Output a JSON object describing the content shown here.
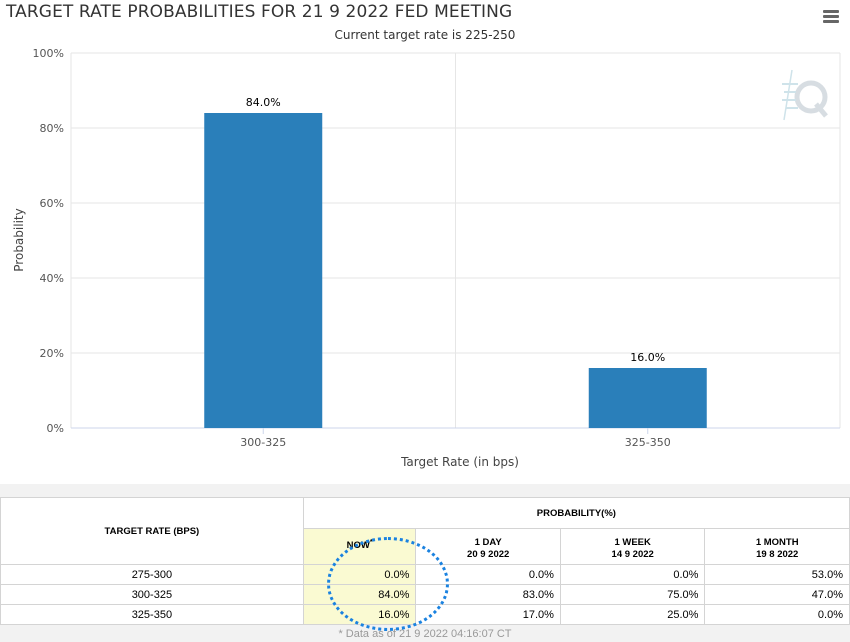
{
  "title": "TARGET RATE PROBABILITIES FOR 21 9 2022 FED MEETING",
  "subtitle": "Current target rate is 225-250",
  "menu_icon": "hamburger-menu-icon",
  "watermark_icon": "cme-fedwatch-q-logo-icon",
  "colors": {
    "bar": "#2a7fba",
    "now_cell": "#fafad2",
    "highlight": "#1a82e0"
  },
  "chart_data": {
    "type": "bar",
    "title": "TARGET RATE PROBABILITIES FOR 21 9 2022 FED MEETING",
    "subtitle": "Current target rate is 225-250",
    "categories": [
      "300-325",
      "325-350"
    ],
    "values": [
      84.0,
      16.0
    ],
    "data_labels": [
      "84.0%",
      "16.0%"
    ],
    "xlabel": "Target Rate (in bps)",
    "ylabel": "Probability",
    "ylim": [
      0,
      100
    ],
    "yticks": [
      "0%",
      "20%",
      "40%",
      "60%",
      "80%",
      "100%"
    ],
    "grid": true,
    "legend": "none"
  },
  "table": {
    "target_rate_header": "TARGET RATE (BPS)",
    "probability_header": "PROBABILITY(%)",
    "columns": [
      {
        "label": "NOW",
        "sub": "*"
      },
      {
        "label": "1 DAY",
        "date": "20 9 2022"
      },
      {
        "label": "1 WEEK",
        "date": "14 9 2022"
      },
      {
        "label": "1 MONTH",
        "date": "19 8 2022"
      }
    ],
    "rows": [
      {
        "rate": "275-300",
        "now": "0.0%",
        "day1": "0.0%",
        "week1": "0.0%",
        "month1": "53.0%"
      },
      {
        "rate": "300-325",
        "now": "84.0%",
        "day1": "83.0%",
        "week1": "75.0%",
        "month1": "47.0%"
      },
      {
        "rate": "325-350",
        "now": "16.0%",
        "day1": "17.0%",
        "week1": "25.0%",
        "month1": "0.0%"
      }
    ],
    "footnote": "* Data as of 21 9 2022 04:16:07 CT"
  }
}
